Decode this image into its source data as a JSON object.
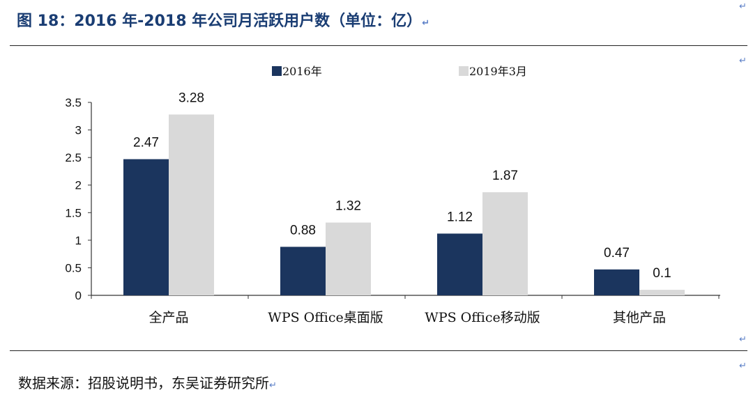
{
  "title": "图 18：2016 年-2018 年公司月活跃用户数（单位：亿）",
  "source": "数据来源：招股说明书，东吴证券研究所",
  "paragraph_mark": "↵",
  "colors": {
    "title": "#1a3d73",
    "series_2016": "#1b355e",
    "series_2019": "#d9d9d9",
    "mark": "#5b7fc7"
  },
  "chart_data": {
    "type": "bar",
    "categories": [
      "全产品",
      "WPS Office桌面版",
      "WPS Office移动版",
      "其他产品"
    ],
    "series": [
      {
        "name": "2016年",
        "values": [
          2.47,
          0.88,
          1.12,
          0.47
        ],
        "color": "#1b355e"
      },
      {
        "name": "2019年3月",
        "values": [
          3.28,
          1.32,
          1.87,
          0.1
        ],
        "color": "#d9d9d9"
      }
    ],
    "y_ticks": [
      "0",
      "0.5",
      "1",
      "1.5",
      "2",
      "2.5",
      "3",
      "3.5"
    ],
    "ylim": [
      0,
      3.5
    ],
    "legend_position": "top",
    "grid": false
  }
}
